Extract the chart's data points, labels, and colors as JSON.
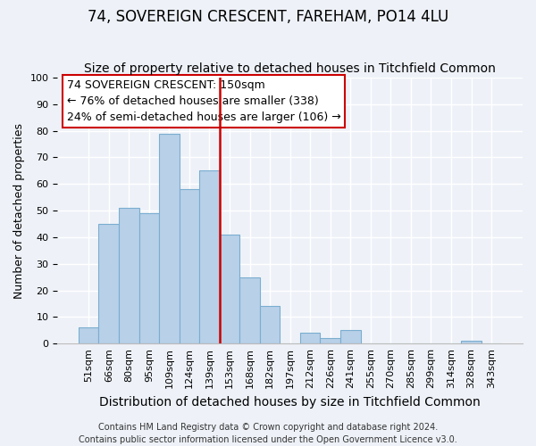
{
  "title": "74, SOVEREIGN CRESCENT, FAREHAM, PO14 4LU",
  "subtitle": "Size of property relative to detached houses in Titchfield Common",
  "xlabel": "Distribution of detached houses by size in Titchfield Common",
  "ylabel": "Number of detached properties",
  "footer_line1": "Contains HM Land Registry data © Crown copyright and database right 2024.",
  "footer_line2": "Contains public sector information licensed under the Open Government Licence v3.0.",
  "bar_labels": [
    "51sqm",
    "66sqm",
    "80sqm",
    "95sqm",
    "109sqm",
    "124sqm",
    "139sqm",
    "153sqm",
    "168sqm",
    "182sqm",
    "197sqm",
    "212sqm",
    "226sqm",
    "241sqm",
    "255sqm",
    "270sqm",
    "285sqm",
    "299sqm",
    "314sqm",
    "328sqm",
    "343sqm"
  ],
  "bar_heights": [
    6,
    45,
    51,
    49,
    79,
    58,
    65,
    41,
    25,
    14,
    0,
    4,
    2,
    5,
    0,
    0,
    0,
    0,
    0,
    1,
    0
  ],
  "bar_color": "#b8d0e8",
  "bar_edge_color": "#7aadd0",
  "vline_color": "#cc0000",
  "annotation_title": "74 SOVEREIGN CRESCENT: 150sqm",
  "annotation_line2": "← 76% of detached houses are smaller (338)",
  "annotation_line3": "24% of semi-detached houses are larger (106) →",
  "annotation_box_color": "#ffffff",
  "annotation_box_edge": "#cc0000",
  "ylim": [
    0,
    100
  ],
  "yticks": [
    0,
    10,
    20,
    30,
    40,
    50,
    60,
    70,
    80,
    90,
    100
  ],
  "background_color": "#eef2f8",
  "grid_color": "#ffffff",
  "title_fontsize": 12,
  "subtitle_fontsize": 10,
  "xlabel_fontsize": 10,
  "ylabel_fontsize": 9,
  "tick_fontsize": 8,
  "annotation_fontsize": 9,
  "footer_fontsize": 7
}
